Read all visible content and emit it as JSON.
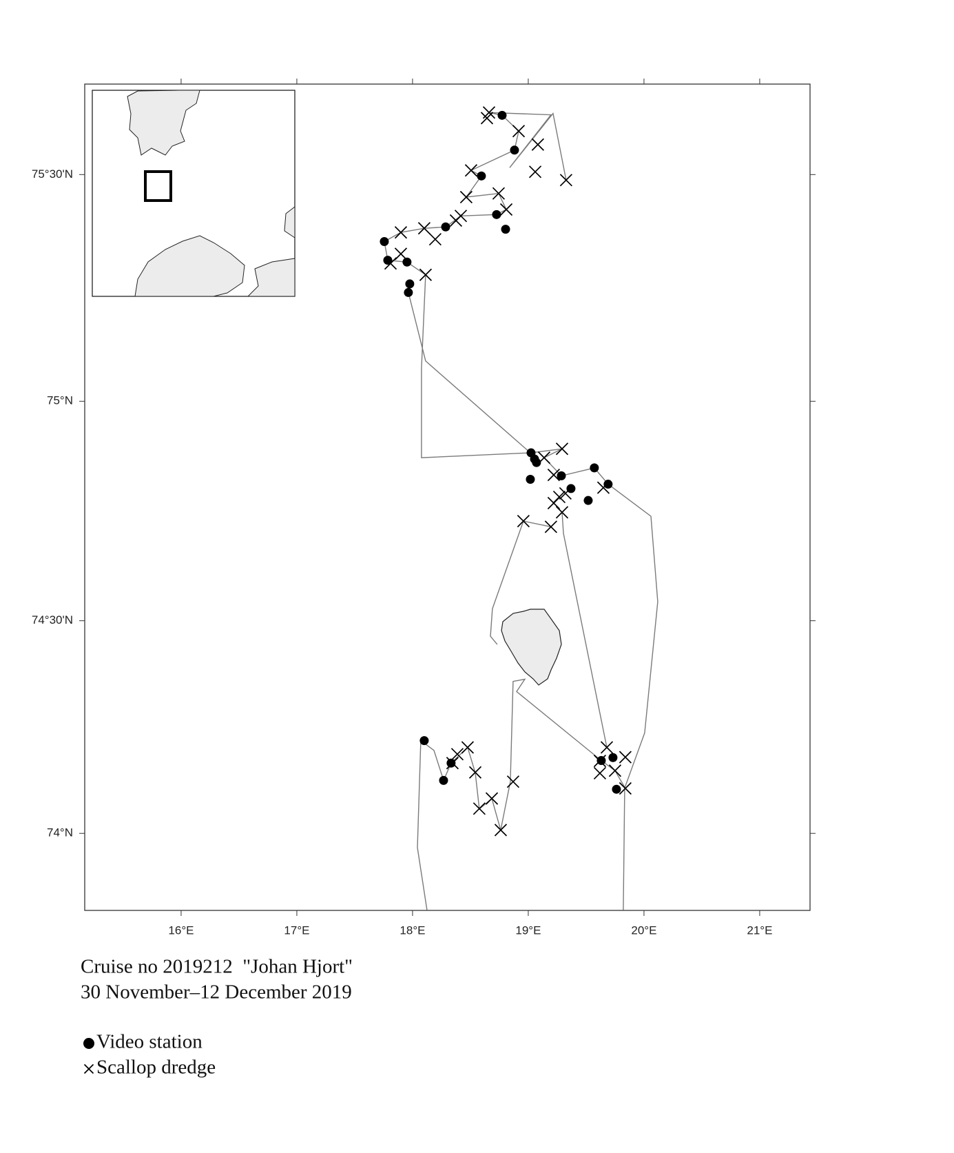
{
  "chart_data": {
    "type": "scatter",
    "projection": "mercator",
    "xlim": [
      15.167,
      21.435
    ],
    "ylim": [
      73.815,
      75.695
    ],
    "xticks": [
      {
        "value": 16,
        "label": "16°E"
      },
      {
        "value": 17,
        "label": "17°E"
      },
      {
        "value": 18,
        "label": "18°E"
      },
      {
        "value": 19,
        "label": "19°E"
      },
      {
        "value": 20,
        "label": "20°E"
      },
      {
        "value": 21,
        "label": "21°E"
      }
    ],
    "yticks": [
      {
        "value": 74,
        "label": "74°N"
      },
      {
        "value": 74.5,
        "label": "74°30'N"
      },
      {
        "value": 75,
        "label": "75°N"
      },
      {
        "value": 75.5,
        "label": "75°30'N"
      }
    ],
    "track": {
      "color": "#7a7a7a",
      "x": [
        18.125,
        18.042,
        18.071,
        18.185,
        18.268,
        18.333,
        18.476,
        18.542,
        18.577,
        18.685,
        18.762,
        18.845,
        18.869,
        18.97,
        18.899,
        19.631,
        19.75,
        19.839,
        null,
        19.821,
        19.833,
        20.006,
        20.119,
        20.06,
        19.69,
        19.571,
        19.286,
        19.137,
        19.292,
        19.024,
        18.077,
        18.077,
        18.113,
        17.952,
        17.786,
        17.756,
        17.899,
        18.101,
        18.286,
        18.417,
        18.726,
        18.81,
        18.744,
        18.464,
        18.595,
        18.506,
        18.881,
        18.917,
        18.774,
        18.661,
        19.196,
        18.839,
        19.214,
        19.327,
        null,
        17.964,
        18.113,
        19.018,
        null,
        19.292,
        19.304,
        19.679,
        null,
        19.196,
        18.958,
        18.69,
        18.673,
        18.732
      ],
      "y": [
        73.816,
        73.966,
        74.22,
        74.197,
        74.126,
        74.167,
        74.204,
        74.144,
        74.058,
        74.083,
        74.008,
        74.123,
        74.359,
        74.364,
        74.335,
        74.173,
        74.149,
        74.107,
        null,
        73.816,
        74.108,
        74.238,
        74.544,
        74.74,
        74.813,
        74.85,
        74.832,
        74.873,
        74.893,
        74.884,
        74.873,
        75.074,
        75.281,
        75.309,
        75.313,
        75.354,
        75.374,
        75.383,
        75.386,
        75.41,
        75.413,
        75.424,
        75.459,
        75.451,
        75.497,
        75.509,
        75.553,
        75.594,
        75.628,
        75.634,
        75.629,
        75.515,
        75.632,
        75.488,
        null,
        75.242,
        75.09,
        74.884,
        null,
        74.749,
        74.701,
        74.204,
        null,
        74.716,
        74.729,
        74.528,
        74.464,
        74.445
      ]
    },
    "series": [
      {
        "name": "Video station",
        "marker": "dot",
        "color": "#000000",
        "x": [
          18.774,
          18.881,
          18.595,
          18.726,
          18.804,
          18.286,
          17.756,
          17.786,
          17.952,
          17.976,
          17.964,
          19.024,
          19.054,
          19.071,
          19.018,
          19.286,
          19.369,
          19.571,
          19.69,
          19.518,
          18.101,
          18.333,
          18.268,
          19.631,
          19.732,
          19.762
        ],
        "y": [
          75.628,
          75.553,
          75.497,
          75.413,
          75.381,
          75.386,
          75.354,
          75.313,
          75.309,
          75.261,
          75.242,
          74.884,
          74.87,
          74.862,
          74.824,
          74.832,
          74.803,
          74.85,
          74.813,
          74.776,
          74.22,
          74.167,
          74.126,
          74.173,
          74.18,
          74.105
        ]
      },
      {
        "name": "Scallop dredge",
        "marker": "cross",
        "color": "#000000",
        "x": [
          18.661,
          18.643,
          18.917,
          19.083,
          19.06,
          19.327,
          18.506,
          18.744,
          18.464,
          18.81,
          18.417,
          18.375,
          18.101,
          17.899,
          18.196,
          17.899,
          17.81,
          18.113,
          19.292,
          19.137,
          19.22,
          19.321,
          19.268,
          19.22,
          19.292,
          18.958,
          19.196,
          19.649,
          19.679,
          19.619,
          19.619,
          19.75,
          19.839,
          19.839,
          18.476,
          18.387,
          18.345,
          18.542,
          18.577,
          18.685,
          18.869,
          18.762
        ],
        "y": [
          75.634,
          75.622,
          75.594,
          75.565,
          75.506,
          75.488,
          75.509,
          75.459,
          75.451,
          75.424,
          75.41,
          75.4,
          75.383,
          75.374,
          75.359,
          75.327,
          75.306,
          75.281,
          74.893,
          74.873,
          74.834,
          74.792,
          74.784,
          74.77,
          74.749,
          74.729,
          74.716,
          74.805,
          74.204,
          74.172,
          74.143,
          74.149,
          74.181,
          74.107,
          74.204,
          74.188,
          74.167,
          74.145,
          74.059,
          74.083,
          74.123,
          74.008
        ]
      }
    ],
    "caption": [
      "Cruise no 2019212  \"Johan Hjort\"",
      "30 November–12 December 2019"
    ]
  }
}
